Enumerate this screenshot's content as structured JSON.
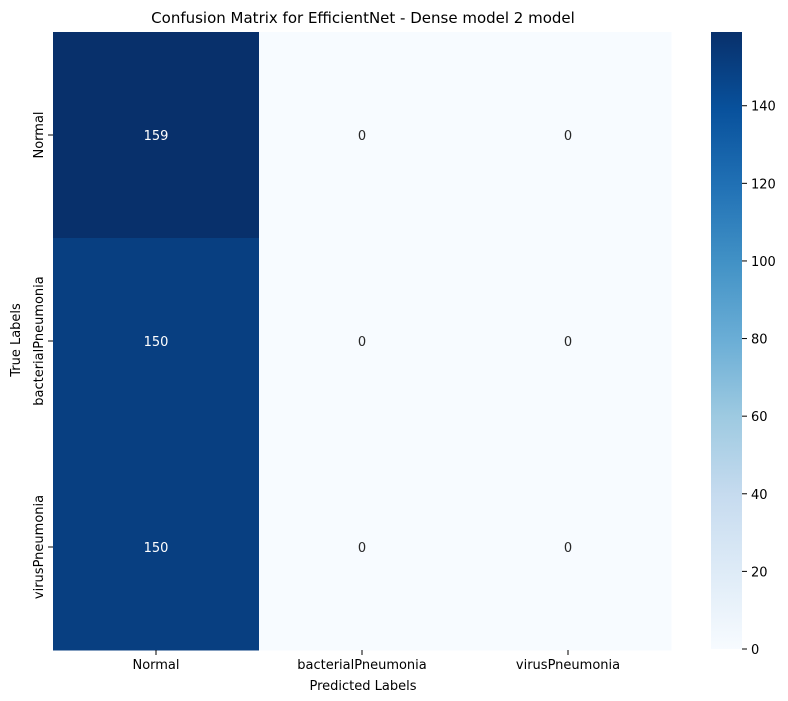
{
  "chart_data": {
    "type": "heatmap",
    "title": "Confusion Matrix for EfficientNet - Dense model 2 model",
    "xlabel": "Predicted Labels",
    "ylabel": "True Labels",
    "x_categories": [
      "Normal",
      "bacterialPneumonia",
      "virusPneumonia"
    ],
    "y_categories": [
      "Normal",
      "bacterialPneumonia",
      "virusPneumonia"
    ],
    "values": [
      [
        159,
        0,
        0
      ],
      [
        150,
        0,
        0
      ],
      [
        150,
        0,
        0
      ]
    ],
    "colormap": "Blues",
    "color_low": "#f7fbff",
    "color_high": "#08306b",
    "colorbar": {
      "range": [
        0,
        159
      ],
      "ticks": [
        0,
        20,
        40,
        60,
        80,
        100,
        120,
        140
      ]
    }
  }
}
